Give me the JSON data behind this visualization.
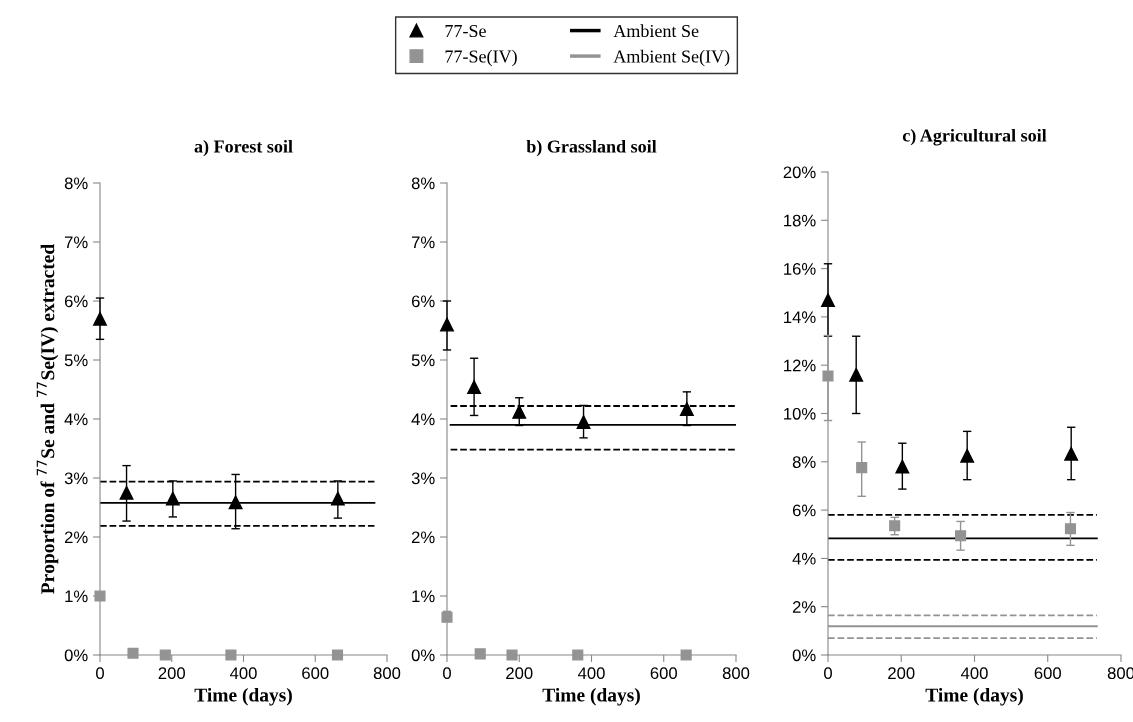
{
  "chart_data": [
    {
      "type": "scatter",
      "title": "a) Forest soil",
      "xlabel": "Time (days)",
      "ylabel": "Proportion of $^{77}$Se and $^{77}$Se(IV) extracted",
      "grid": false,
      "xlim": [
        0,
        800
      ],
      "xticks": [
        0,
        200,
        400,
        600,
        800
      ],
      "ylim": [
        0,
        8
      ],
      "yticks": [
        {
          "value": 0,
          "label": "0%"
        },
        {
          "value": 1,
          "label": "1%"
        },
        {
          "value": 2,
          "label": "2%"
        },
        {
          "value": 3,
          "label": "3%"
        },
        {
          "value": 4,
          "label": "4%"
        },
        {
          "value": 5,
          "label": "5%"
        },
        {
          "value": 6,
          "label": "6%"
        },
        {
          "value": 7,
          "label": "7%"
        },
        {
          "value": 8,
          "label": "8%"
        }
      ],
      "series": [
        {
          "marker": "triangle",
          "color": "#000000",
          "x": [
            0,
            74,
            203,
            378,
            663
          ],
          "values": [
            5.7,
            2.75,
            2.65,
            2.59,
            2.65
          ],
          "errors": [
            [
              5.35,
              6.05
            ],
            [
              2.27,
              3.21
            ],
            [
              2.34,
              2.95
            ],
            [
              2.14,
              3.06
            ],
            [
              2.32,
              2.95
            ]
          ]
        },
        {
          "marker": "square",
          "color": "#939393",
          "x": [
            0,
            92,
            182,
            365,
            662
          ],
          "values": [
            1.0,
            0.03,
            0,
            0,
            0
          ],
          "errors": [
            [
              0.93,
              1.05
            ],
            null,
            null,
            null,
            null
          ]
        },
        {
          "type": "line",
          "line_style": "solid",
          "color": "#000000",
          "x": [
            0,
            765
          ],
          "values": [
            2.58,
            2.58
          ]
        },
        {
          "type": "line",
          "line_style": "dashed",
          "color": "#000000",
          "x": [
            0,
            765
          ],
          "values": [
            2.19,
            2.19
          ]
        },
        {
          "type": "line",
          "line_style": "dashed",
          "color": "#000000",
          "x": [
            0,
            765
          ],
          "values": [
            2.94,
            2.94
          ]
        }
      ]
    },
    {
      "type": "scatter",
      "title": "b) Grassland soil",
      "xlabel": "Time (days)",
      "grid": false,
      "xlim": [
        0,
        800
      ],
      "xticks": [
        0,
        200,
        400,
        600,
        800
      ],
      "ylim": [
        0,
        8
      ],
      "yticks": [
        {
          "value": 0,
          "label": "0%"
        },
        {
          "value": 1,
          "label": "1%"
        },
        {
          "value": 2,
          "label": "2%"
        },
        {
          "value": 3,
          "label": "3%"
        },
        {
          "value": 4,
          "label": "4%"
        },
        {
          "value": 5,
          "label": "5%"
        },
        {
          "value": 6,
          "label": "6%"
        },
        {
          "value": 7,
          "label": "7%"
        },
        {
          "value": 8,
          "label": "8%"
        }
      ],
      "series": [
        {
          "marker": "triangle",
          "color": "#000000",
          "x": [
            0,
            75,
            200,
            378,
            664
          ],
          "values": [
            5.6,
            4.54,
            4.12,
            3.95,
            4.17
          ],
          "errors": [
            [
              5.17,
              6.0
            ],
            [
              4.06,
              5.03
            ],
            [
              3.89,
              4.36
            ],
            [
              3.68,
              4.23
            ],
            [
              3.89,
              4.46
            ]
          ]
        },
        {
          "marker": "square",
          "color": "#939393",
          "x": [
            0,
            92,
            180,
            362,
            662
          ],
          "values": [
            0.64,
            0.02,
            0,
            0,
            0
          ],
          "errors": [
            [
              0.57,
              0.74
            ],
            null,
            null,
            null,
            null
          ]
        },
        {
          "type": "line",
          "line_style": "solid",
          "color": "#000000",
          "x": [
            10,
            800
          ],
          "values": [
            3.9,
            3.9
          ]
        },
        {
          "type": "line",
          "line_style": "dashed",
          "color": "#000000",
          "x": [
            10,
            800
          ],
          "values": [
            3.48,
            3.48
          ]
        },
        {
          "type": "line",
          "line_style": "dashed",
          "color": "#000000",
          "x": [
            10,
            800
          ],
          "values": [
            4.22,
            4.22
          ]
        }
      ]
    },
    {
      "type": "scatter",
      "title": "c) Agricultural soil",
      "xlabel": "Time (days)",
      "grid": false,
      "legend": "top",
      "xlim": [
        0,
        800
      ],
      "xticks": [
        0,
        200,
        400,
        600,
        800
      ],
      "ylim": [
        0,
        20
      ],
      "yticks": [
        {
          "value": 0,
          "label": "0%"
        },
        {
          "value": 2,
          "label": "2%"
        },
        {
          "value": 4,
          "label": "4%"
        },
        {
          "value": 6,
          "label": "6%"
        },
        {
          "value": 8,
          "label": "8%"
        },
        {
          "value": 10,
          "label": "10%"
        },
        {
          "value": 12,
          "label": "12%"
        },
        {
          "value": 14,
          "label": "14%"
        },
        {
          "value": 16,
          "label": "16%"
        },
        {
          "value": 18,
          "label": "18%"
        },
        {
          "value": 20,
          "label": "20%"
        }
      ],
      "series": [
        {
          "name": "77-Se",
          "marker": "triangle",
          "color": "#000000",
          "x": [
            0,
            77,
            203,
            380,
            664
          ],
          "values": [
            14.7,
            11.6,
            7.8,
            8.25,
            8.33
          ],
          "errors": [
            [
              13.2,
              16.2
            ],
            [
              10.0,
              13.2
            ],
            [
              6.87,
              8.77
            ],
            [
              7.26,
              9.26
            ],
            [
              7.26,
              9.43
            ]
          ]
        },
        {
          "name": "77-Se(IV)",
          "marker": "square",
          "color": "#939393",
          "x": [
            0,
            92,
            182,
            362,
            662
          ],
          "values": [
            11.55,
            7.76,
            5.35,
            4.94,
            5.23
          ],
          "errors": [
            [
              9.71,
              13.23
            ],
            [
              6.57,
              8.82
            ],
            [
              4.98,
              5.7
            ],
            [
              4.34,
              5.53
            ],
            [
              4.54,
              5.9
            ]
          ]
        },
        {
          "name": "Ambient Se",
          "type": "line",
          "line_style": "solid",
          "color": "#000000",
          "x": [
            0,
            734
          ],
          "values": [
            4.83,
            4.83
          ]
        },
        {
          "name": "Ambient Se(IV)",
          "type": "line",
          "line_style": "solid",
          "color": "#939393",
          "x": [
            0,
            734
          ],
          "values": [
            1.19,
            1.19
          ]
        },
        {
          "type": "line",
          "line_style": "dashed",
          "color": "#000000",
          "x": [
            0,
            734
          ],
          "values": [
            3.94,
            3.94
          ]
        },
        {
          "type": "line",
          "line_style": "dashed",
          "color": "#000000",
          "x": [
            0,
            734
          ],
          "values": [
            5.8,
            5.8
          ]
        },
        {
          "type": "line",
          "line_style": "dashed",
          "color": "#939393",
          "x": [
            0,
            734
          ],
          "values": [
            0.7,
            0.7
          ]
        },
        {
          "type": "line",
          "line_style": "dashed",
          "color": "#939393",
          "x": [
            0,
            734
          ],
          "values": [
            1.64,
            1.64
          ]
        }
      ]
    }
  ]
}
